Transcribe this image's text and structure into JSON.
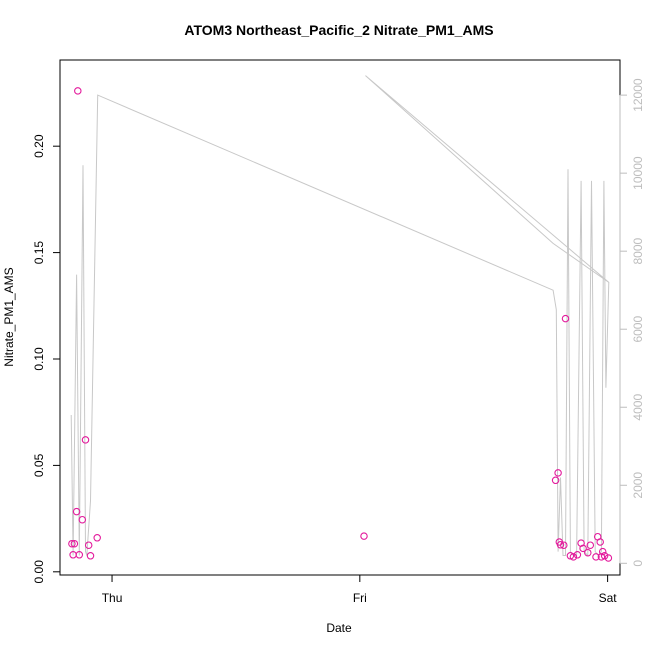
{
  "chart_data": {
    "type": "scatter",
    "title": "ATOM3 Northeast_Pacific_2 Nitrate_PM1_AMS",
    "xlabel": "Date",
    "ylabel": "Nitrate_PM1_AMS",
    "x_ticks": [
      {
        "value": 1.0,
        "label": "Thu"
      },
      {
        "value": 2.0,
        "label": "Fri"
      },
      {
        "value": 3.0,
        "label": "Sat"
      }
    ],
    "xlim": [
      0.79,
      3.05
    ],
    "ylim": [
      -0.0015,
      0.2405
    ],
    "y_ticks": [
      0.0,
      0.05,
      0.1,
      0.15,
      0.2
    ],
    "y_tick_labels": [
      "0.00",
      "0.05",
      "0.10",
      "0.15",
      "0.20"
    ],
    "y2lim": [
      -300,
      12900
    ],
    "y2_ticks": [
      0,
      2000,
      4000,
      6000,
      8000,
      10000,
      12000
    ],
    "y2_tick_labels": [
      "0",
      "2000",
      "4000",
      "6000",
      "8000",
      "10000",
      "12000"
    ],
    "colors": {
      "points": "#e31a9c",
      "secondary_line": "#c8c8c8",
      "right_axis": "#bdbdbd"
    },
    "series": [
      {
        "kind": "points",
        "x": [
          0.838,
          0.843,
          0.848,
          0.857,
          0.862,
          0.868,
          0.88,
          0.893,
          0.906,
          0.913,
          0.94,
          2.017,
          2.79,
          2.8,
          2.805,
          2.81,
          2.823,
          2.83,
          2.85,
          2.862,
          2.878,
          2.893,
          2.901,
          2.92,
          2.93,
          2.953,
          2.96,
          2.97,
          2.975,
          2.98,
          2.988,
          3.003
        ],
        "y": [
          0.0132,
          0.008,
          0.0132,
          0.0283,
          0.226,
          0.008,
          0.0245,
          0.062,
          0.0125,
          0.0075,
          0.016,
          0.0168,
          0.043,
          0.0465,
          0.014,
          0.0127,
          0.0125,
          0.119,
          0.0075,
          0.007,
          0.008,
          0.0135,
          0.011,
          0.009,
          0.0125,
          0.007,
          0.0165,
          0.014,
          0.007,
          0.0095,
          0.0075,
          0.0065
        ]
      },
      {
        "kind": "line",
        "axis": "right",
        "x": [
          0.835,
          0.843,
          0.857,
          0.868,
          0.883,
          0.893,
          0.898,
          0.913,
          0.942,
          2.78,
          2.793,
          2.8,
          2.81,
          2.82,
          2.83,
          2.84,
          2.85,
          2.862,
          2.875,
          2.893,
          2.905,
          2.92,
          2.935,
          2.95,
          2.962,
          2.975,
          2.985,
          2.993,
          3.005,
          2.023,
          2.78,
          3.005
        ],
        "y": [
          3800,
          200,
          7400,
          200,
          10200,
          300,
          200,
          1600,
          12000,
          7000,
          6500,
          300,
          2200,
          200,
          200,
          10100,
          300,
          200,
          200,
          9800,
          300,
          200,
          9800,
          300,
          200,
          300,
          9800,
          4500,
          7200,
          12500,
          8200,
          7200
        ]
      }
    ]
  }
}
